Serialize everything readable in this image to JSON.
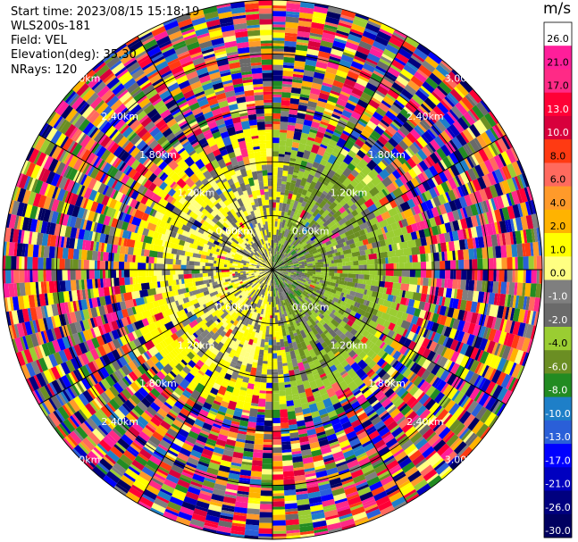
{
  "info": {
    "start_time": "Start time: 2023/08/15 15:18:19",
    "instrument": "WLS200s-181",
    "field": "Field: VEL",
    "elevation": "Elevation(deg): 35.30",
    "nrays": "NRays: 120"
  },
  "chart_data": {
    "type": "heatmap",
    "projection": "polar (PPI scan)",
    "field": "VEL",
    "n_rays": 120,
    "range_rings_km": [
      0.6,
      1.2,
      1.8,
      2.4,
      3.0
    ],
    "range_ring_labels": [
      "0.60km",
      "1.20km",
      "1.80km",
      "2.40km",
      "3.00km"
    ],
    "colorbar": {
      "unit": "m/s",
      "ticks": [
        "26.0",
        "21.0",
        "17.0",
        "13.0",
        "10.0",
        "8.0",
        "6.0",
        "4.0",
        "2.0",
        "1.0",
        "0.0",
        "-1.0",
        "-2.0",
        "-4.0",
        "-6.0",
        "-8.0",
        "-10.0",
        "-13.0",
        "-17.0",
        "-21.0",
        "-26.0",
        "-30.0"
      ],
      "colors": [
        "#ffffff",
        "#ff1e9a",
        "#ff2a86",
        "#ff0036",
        "#d8003c",
        "#ff3a12",
        "#ff6a5e",
        "#ff9a2a",
        "#ffb300",
        "#ffff00",
        "#ffff82",
        "#7f7f7f",
        "#6a6a6a",
        "#9acd32",
        "#6b8e23",
        "#228b22",
        "#1e7fc8",
        "#2a5fd8",
        "#0000ff",
        "#0000c0",
        "#00007f",
        "#000060"
      ]
    },
    "description": "Radial velocity PPI: near-range core mostly 0.0 to 4.0 m/s (grey/yellow) on the west, -1.0 to -4.0 m/s (green) on the east; beyond ~1.2 km the field is noisy across the full colour scale"
  }
}
